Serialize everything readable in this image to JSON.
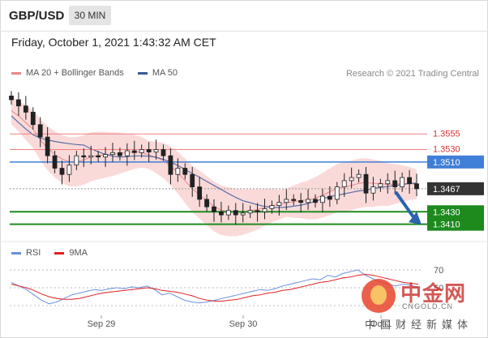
{
  "header": {
    "symbol": "GBP/USD",
    "timeframe": "30 MIN"
  },
  "date_text": "Friday, October 1, 2021 1:43:32 AM CET",
  "credit": "Research © 2021 Trading Central",
  "legend": {
    "ma20_label": "MA 20 + Bollinger Bands",
    "ma50_label": "MA 50",
    "rsi_label": "RSI",
    "ma9_label": "9MA"
  },
  "colors": {
    "ma20": "#e8878a",
    "band": "#f9d4d2",
    "ma50": "#5a6ea8",
    "support": "#1e8a1e",
    "blue_level": "#3f7fd8",
    "red_level": "#f08080",
    "last_price": "#333333",
    "rsi": "#6a8fe0",
    "rsi_ma": "#e02020",
    "arrow": "#2a63b0"
  },
  "watermark": {
    "name": "中金网",
    "url": "CNGOLD.CN",
    "tagline": "中国财经新媒体"
  },
  "chart_data": [
    {
      "type": "candlestick",
      "title": "GBP/USD 30 MIN",
      "x_tick_labels": [
        "Sep 29",
        "Sep 30",
        "Oct 1"
      ],
      "ylim": [
        1.339,
        1.364
      ],
      "bollinger_band": {
        "name": "MA 20 + Bollinger Bands"
      },
      "overlays": [
        "MA 20",
        "MA 50"
      ],
      "levels": [
        {
          "value": 1.3555,
          "label": "1.3555",
          "kind": "resistance",
          "color": "#f08080"
        },
        {
          "value": 1.353,
          "label": "1.3530",
          "kind": "resistance",
          "color": "#f08080"
        },
        {
          "value": 1.351,
          "label": "1.3510",
          "kind": "pivot",
          "color": "#3f7fd8"
        },
        {
          "value": 1.3467,
          "label": "1.3467",
          "kind": "last",
          "color": "#333333"
        },
        {
          "value": 1.343,
          "label": "1.3430",
          "kind": "support",
          "color": "#1e8a1e"
        },
        {
          "value": 1.341,
          "label": "1.3410",
          "kind": "support",
          "color": "#1e8a1e"
        }
      ],
      "close_path": [
        1.361,
        1.36,
        1.359,
        1.357,
        1.355,
        1.352,
        1.35,
        1.349,
        1.3505,
        1.352,
        1.3518,
        1.352,
        1.3518,
        1.3522,
        1.3525,
        1.352,
        1.3528,
        1.3525,
        1.353,
        1.3526,
        1.353,
        1.352,
        1.349,
        1.35,
        1.349,
        1.347,
        1.345,
        1.3438,
        1.343,
        1.3425,
        1.3432,
        1.3425,
        1.3428,
        1.3432,
        1.343,
        1.3435,
        1.344,
        1.3445,
        1.345,
        1.3448,
        1.3445,
        1.345,
        1.3445,
        1.3455,
        1.345,
        1.347,
        1.348,
        1.3485,
        1.349,
        1.346,
        1.347,
        1.3475,
        1.348,
        1.347,
        1.3485,
        1.3475,
        1.3467
      ],
      "annotation": "forecast arrow pointing down toward 1.3410 support"
    },
    {
      "type": "line",
      "title": "RSI",
      "series": [
        {
          "name": "RSI",
          "values": [
            56,
            52,
            48,
            42,
            36,
            32,
            34,
            38,
            42,
            44,
            46,
            48,
            47,
            49,
            50,
            49,
            51,
            50,
            52,
            48,
            42,
            44,
            40,
            36,
            34,
            33,
            34,
            36,
            38,
            40,
            42,
            44,
            46,
            48,
            47,
            49,
            52,
            54,
            56,
            58,
            60,
            59,
            64,
            62,
            66,
            68,
            70,
            64,
            60,
            56,
            54,
            52,
            54,
            53,
            50
          ]
        },
        {
          "name": "9MA",
          "values": [
            54,
            52,
            50,
            47,
            43,
            40,
            38,
            37,
            37,
            38,
            40,
            42,
            44,
            45,
            46,
            47,
            48,
            49,
            50,
            49,
            47,
            46,
            45,
            43,
            41,
            38,
            36,
            35,
            35,
            36,
            37,
            39,
            41,
            42,
            44,
            45,
            47,
            48,
            50,
            52,
            54,
            56,
            57,
            59,
            61,
            62,
            64,
            65,
            64,
            62,
            60,
            58,
            56,
            55,
            54
          ]
        }
      ],
      "y_ticks": [
        30,
        50,
        70
      ],
      "y_tick_labels": [
        "",
        "50",
        "70"
      ],
      "ylim": [
        20,
        80
      ]
    }
  ]
}
